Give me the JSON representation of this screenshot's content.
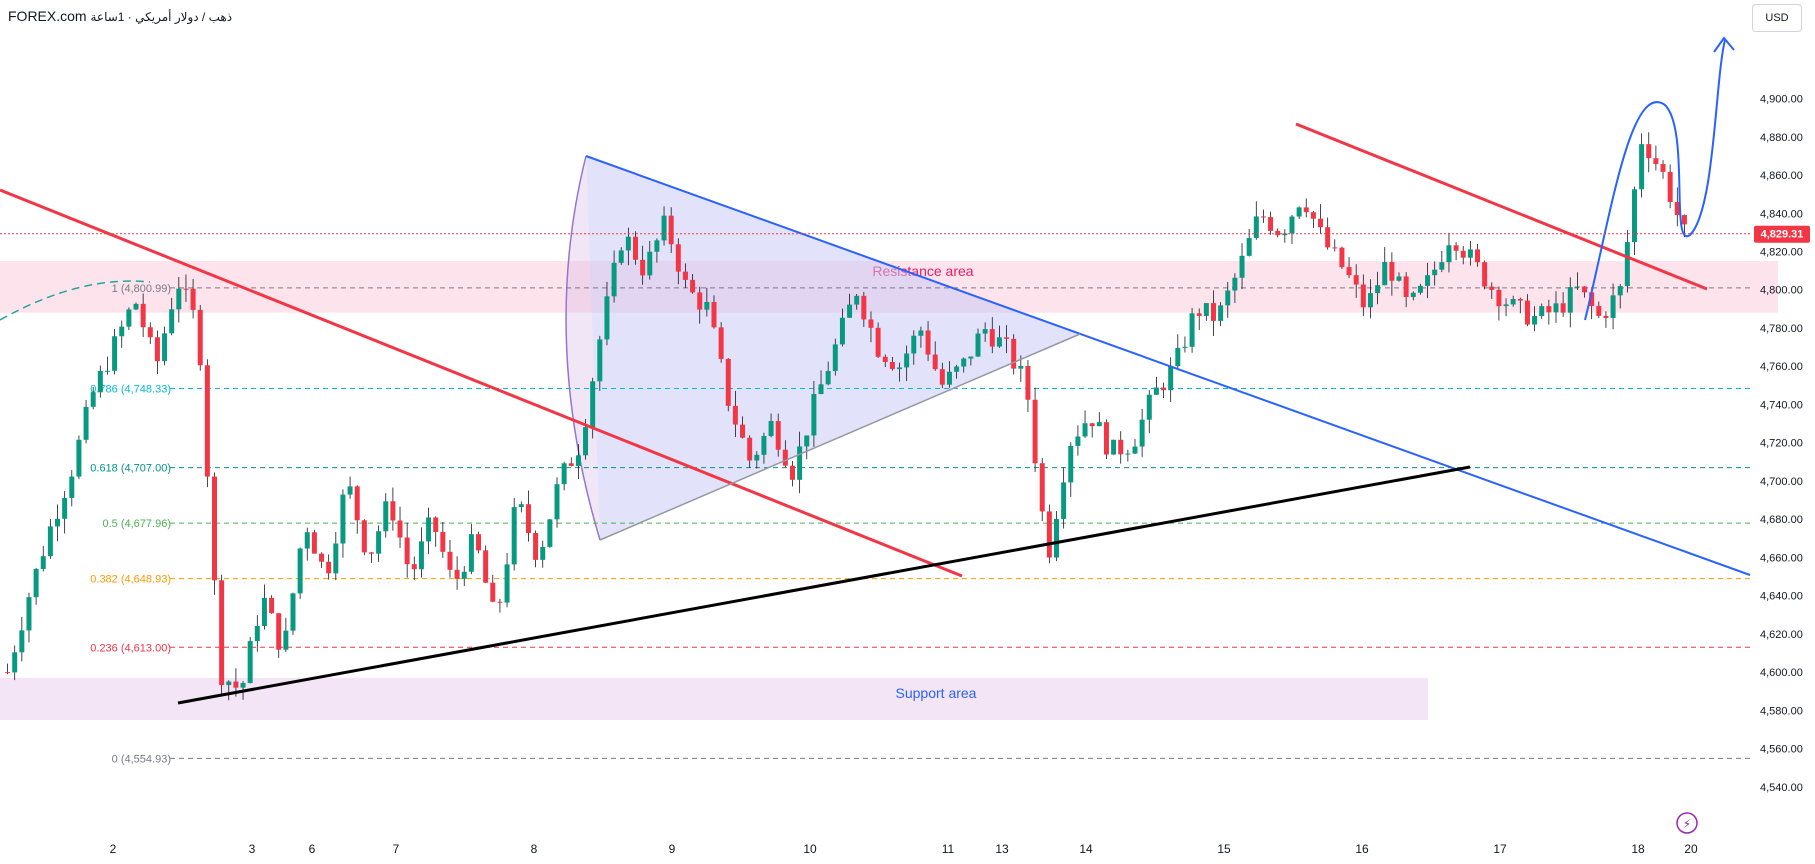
{
  "header": {
    "brand": "FOREX.com",
    "symbol_text": "ذهب / دولار أمريكي · 1ساعة"
  },
  "currency_button": "USD",
  "current_price": {
    "label": "4,829.31",
    "value": 4829.31,
    "color": "#f23645"
  },
  "annotations": {
    "resistance": "Resistance area",
    "support": "Support area"
  },
  "colors": {
    "up": "#089981",
    "down": "#f23645",
    "resistance_fill": "#fde3ec",
    "support_fill": "#f3e5f5",
    "triangle_fill": "#c5c8f5",
    "red_line": "#f23645",
    "blue_line": "#2962ff",
    "black_line": "#000000"
  },
  "chart_data": {
    "type": "candlestick",
    "title": "",
    "xlabel": "",
    "ylabel": "",
    "ylim": [
      4530,
      4928
    ],
    "y_ticks": [
      "4,900.00",
      "4,880.00",
      "4,860.00",
      "4,840.00",
      "4,820.00",
      "4,800.00",
      "4,780.00",
      "4,760.00",
      "4,740.00",
      "4,720.00",
      "4,700.00",
      "4,680.00",
      "4,660.00",
      "4,640.00",
      "4,620.00",
      "4,600.00",
      "4,580.00",
      "4,560.00",
      "4,540.00"
    ],
    "x_ticks": [
      "2",
      "3",
      "6",
      "7",
      "8",
      "9",
      "10",
      "11",
      "13",
      "14",
      "15",
      "16",
      "17",
      "18",
      "20"
    ],
    "fib_levels": [
      {
        "label": "1 (4,800.99)",
        "value": 4800.99,
        "color": "#787b86"
      },
      {
        "label": "0.786 (4,748.33)",
        "value": 4748.33,
        "color": "#00bcd4"
      },
      {
        "label": "0.618 (4,707.00)",
        "value": 4707.0,
        "color": "#009688"
      },
      {
        "label": "0.5 (4,677.96)",
        "value": 4677.96,
        "color": "#4caf50"
      },
      {
        "label": "0.382 (4,648.93)",
        "value": 4648.93,
        "color": "#ff9800"
      },
      {
        "label": "0.236 (4,613.00)",
        "value": 4613.0,
        "color": "#f23645"
      },
      {
        "label": "0 (4,554.93)",
        "value": 4554.93,
        "color": "#787b86"
      }
    ],
    "zones": {
      "resistance": [
        4788,
        4815
      ],
      "support": [
        4575,
        4597
      ]
    },
    "price_path": [
      4600,
      4640,
      4675,
      4705,
      4745,
      4770,
      4795,
      4760,
      4805,
      4780,
      4600,
      4590,
      4640,
      4610,
      4680,
      4650,
      4700,
      4660,
      4690,
      4650,
      4680,
      4645,
      4670,
      4625,
      4690,
      4660,
      4700,
      4720,
      4780,
      4830,
      4810,
      4835,
      4800,
      4790,
      4740,
      4710,
      4730,
      4705,
      4740,
      4770,
      4800,
      4770,
      4760,
      4780,
      4750,
      4760,
      4780,
      4770,
      4750,
      4660,
      4720,
      4735,
      4715,
      4720,
      4745,
      4760,
      4790,
      4785,
      4810,
      4840,
      4830,
      4850,
      4825,
      4810,
      4790,
      4815,
      4790,
      4805,
      4830,
      4815,
      4800,
      4790,
      4785,
      4790,
      4800,
      4785,
      4800,
      4880,
      4860,
      4829
    ]
  }
}
